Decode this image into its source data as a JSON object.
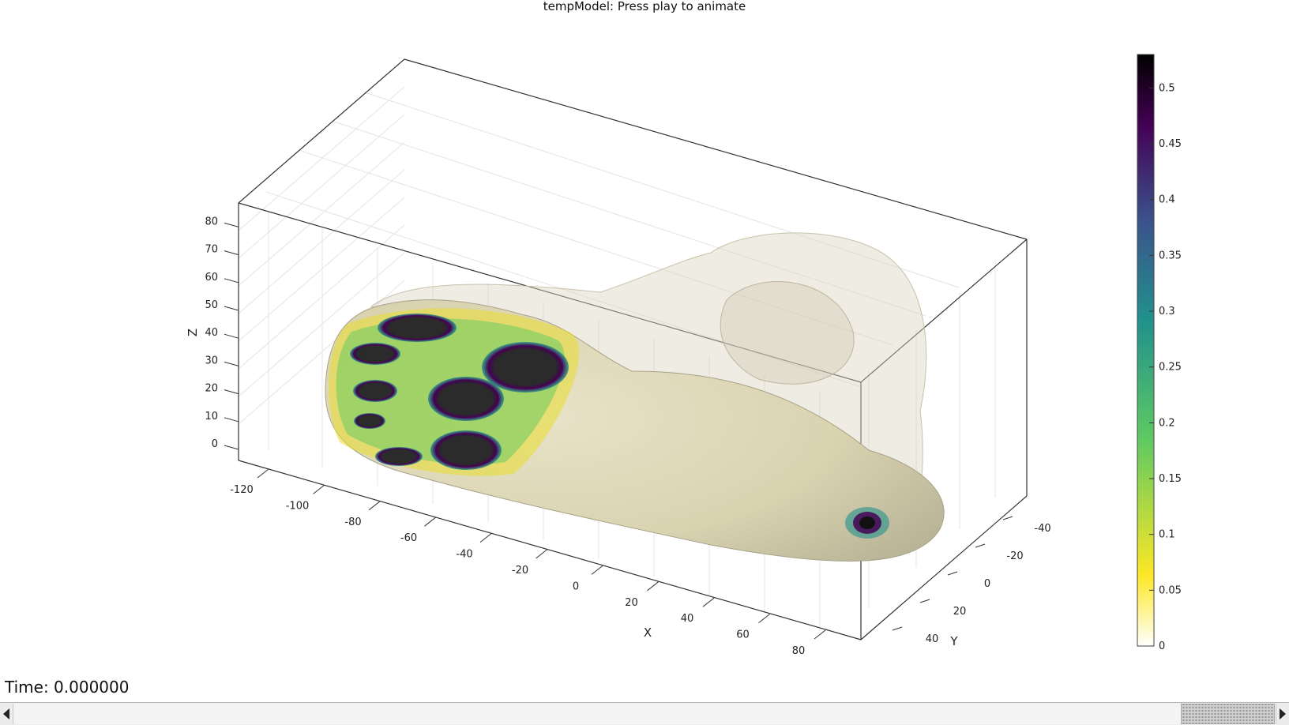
{
  "window": {
    "title": "tempModel: Press play to animate"
  },
  "axes": {
    "z": {
      "label": "Z",
      "ticks": [
        "0",
        "10",
        "20",
        "30",
        "40",
        "50",
        "60",
        "70",
        "80"
      ]
    },
    "x": {
      "label": "X",
      "ticks": [
        "-120",
        "-100",
        "-80",
        "-60",
        "-40",
        "-20",
        "0",
        "20",
        "40",
        "60",
        "80"
      ]
    },
    "y": {
      "label": "Y",
      "ticks": [
        "-40",
        "-20",
        "0",
        "20",
        "40"
      ]
    }
  },
  "colorbar": {
    "colormap": "viridis-reversed",
    "colors": [
      "#ffffff",
      "#fde725",
      "#5ec962",
      "#21918c",
      "#3b528b",
      "#440154",
      "#000000"
    ],
    "ticks": [
      "0",
      "0.05",
      "0.1",
      "0.15",
      "0.2",
      "0.25",
      "0.3",
      "0.35",
      "0.4",
      "0.45",
      "0.5"
    ],
    "range": [
      0,
      0.53
    ]
  },
  "status": {
    "time_text": "Time: 0.000000"
  },
  "scrollbar": {
    "left_icon": "arrow-left-icon",
    "right_icon": "arrow-right-icon",
    "position": 0.98
  }
}
